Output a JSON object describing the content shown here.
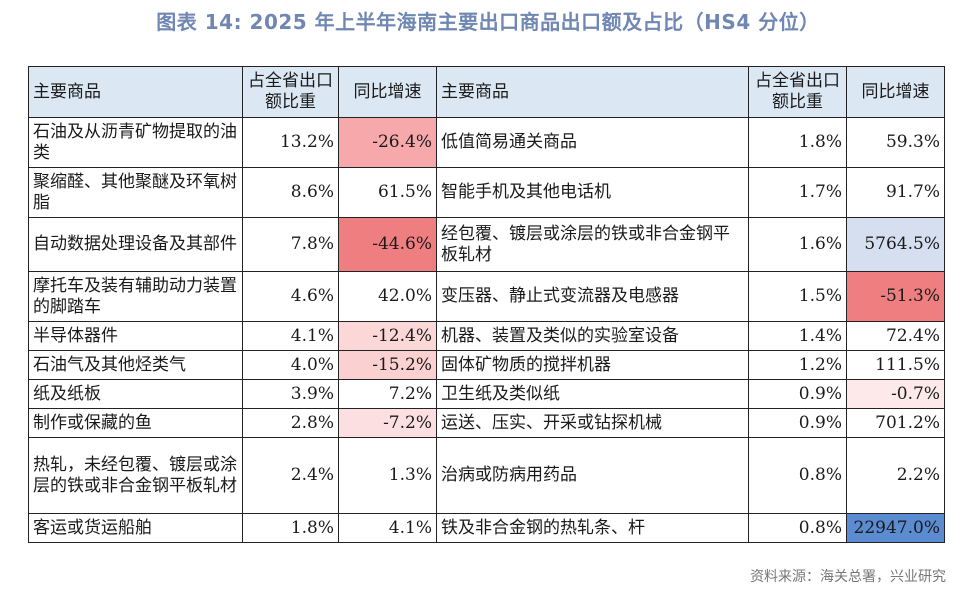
{
  "title": "图表 14: 2025 年上半年海南主要出口商品出口额及占比（HS4 分位）",
  "headers": {
    "product": "主要商品",
    "share": "占全省出口额比重",
    "growth": "同比增速"
  },
  "colors": {
    "header_bg": "#dbe8f4",
    "neg_strong": "#ee7e80",
    "neg_medium": "#f6a8aa",
    "neg_light": "#fbd7d8",
    "neg_faint": "#fde9ea",
    "pos_strong": "#5b8bd0",
    "pos_light": "#d5dff0"
  },
  "rows": [
    {
      "left": {
        "name": "石油及从沥青矿物提取的油类",
        "share": "13.2%",
        "growth": "-26.4%",
        "bg": "#f6a8aa"
      },
      "right": {
        "name": "低值简易通关商品",
        "share": "1.8%",
        "growth": "59.3%",
        "bg": "#ffffff"
      }
    },
    {
      "left": {
        "name": "聚缩醛、其他聚醚及环氧树脂",
        "share": "8.6%",
        "growth": "61.5%",
        "bg": "#ffffff"
      },
      "right": {
        "name": "智能手机及其他电话机",
        "share": "1.7%",
        "growth": "91.7%",
        "bg": "#ffffff"
      }
    },
    {
      "left": {
        "name": "自动数据处理设备及其部件",
        "share": "7.8%",
        "growth": "-44.6%",
        "bg": "#ee7e80"
      },
      "right": {
        "name": "经包覆、镀层或涂层的铁或非合金钢平板轧材",
        "share": "1.6%",
        "growth": "5764.5%",
        "bg": "#d5dff0"
      }
    },
    {
      "left": {
        "name": "摩托车及装有辅助动力装置的脚踏车",
        "share": "4.6%",
        "growth": "42.0%",
        "bg": "#ffffff"
      },
      "right": {
        "name": "变压器、静止式变流器及电感器",
        "share": "1.5%",
        "growth": "-51.3%",
        "bg": "#ee7e80"
      }
    },
    {
      "left": {
        "name": "半导体器件",
        "share": "4.1%",
        "growth": "-12.4%",
        "bg": "#fbd7d8"
      },
      "right": {
        "name": "机器、装置及类似的实验室设备",
        "share": "1.4%",
        "growth": "72.4%",
        "bg": "#ffffff"
      }
    },
    {
      "left": {
        "name": "石油气及其他烃类气",
        "share": "4.0%",
        "growth": "-15.2%",
        "bg": "#fbd0d1"
      },
      "right": {
        "name": "固体矿物质的搅拌机器",
        "share": "1.2%",
        "growth": "111.5%",
        "bg": "#ffffff"
      }
    },
    {
      "left": {
        "name": "纸及纸板",
        "share": "3.9%",
        "growth": "7.2%",
        "bg": "#ffffff"
      },
      "right": {
        "name": "卫生纸及类似纸",
        "share": "0.9%",
        "growth": "-0.7%",
        "bg": "#fde9ea"
      }
    },
    {
      "left": {
        "name": "制作或保藏的鱼",
        "share": "2.8%",
        "growth": "-7.2%",
        "bg": "#fce0e1"
      },
      "right": {
        "name": "运送、压实、开采或钻探机械",
        "share": "0.9%",
        "growth": "701.2%",
        "bg": "#ffffff"
      }
    },
    {
      "left": {
        "name": "热轧，未经包覆、镀层或涂层的铁或非合金钢平板轧材",
        "share": "2.4%",
        "growth": "1.3%",
        "bg": "#ffffff"
      },
      "right": {
        "name": "治病或防病用药品",
        "share": "0.8%",
        "growth": "2.2%",
        "bg": "#ffffff"
      }
    },
    {
      "left": {
        "name": "客运或货运船舶",
        "share": "1.8%",
        "growth": "4.1%",
        "bg": "#ffffff"
      },
      "right": {
        "name": "铁及非合金钢的热轧条、杆",
        "share": "0.8%",
        "growth": "22947.0%",
        "bg": "#5b8bd0"
      }
    }
  ],
  "source": "资料来源：海关总署，兴业研究"
}
